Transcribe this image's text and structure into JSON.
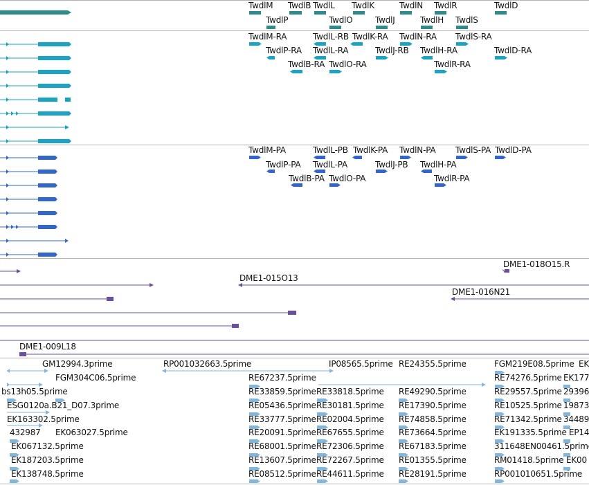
{
  "colors": {
    "transcript_old": "#2f8b8b",
    "transcript_ra": "#1aa3c3",
    "transcript_pa": "#3366cc",
    "bac": "#6a4ea0",
    "est": "#84b6dc",
    "divider": "#b4b4b4"
  },
  "tracks": {
    "genes": {
      "labels": [
        "TwdlM",
        "TwdlB",
        "TwdlL",
        "TwdlK",
        "TwdlN",
        "TwdlR",
        "TwdlD",
        "TwdlP",
        "TwdlO",
        "TwdlJ",
        "TwdlH",
        "TwdlS"
      ]
    },
    "ra_transcripts": {
      "labels": [
        "TwdlM-RA",
        "TwdlL-RB",
        "TwdlK-RA",
        "TwdlN-RA",
        "TwdlS-RA",
        "TwdlP-RA",
        "TwdlL-RA",
        "TwdlJ-RB",
        "TwdlH-RA",
        "TwdlD-RA",
        "TwdlB-RA",
        "TwdlO-RA",
        "TwdlR-RA"
      ]
    },
    "pa_transcripts": {
      "labels": [
        "TwdlM-PA",
        "TwdlL-PB",
        "TwdlK-PA",
        "TwdlN-PA",
        "TwdlS-PA",
        "TwdlD-PA",
        "TwdlP-PA",
        "TwdlL-PA",
        "TwdlJ-PB",
        "TwdlH-PA",
        "TwdlB-PA",
        "TwdlO-PA",
        "TwdlR-PA"
      ]
    },
    "bac_clones": {
      "labels": [
        "DME1-018O15.R",
        "DME1-015O13",
        "DME1-016N21",
        "DME1-009L18"
      ]
    },
    "est": {
      "labels": [
        "GM12994.3prime",
        "RP001032663.5prime",
        "IP08565.5prime",
        "RE24355.5prime",
        "FGM219E08.5prime",
        "EK",
        "FGM304C06.5prime",
        "RE67237.5prime",
        "RE74276.5prime",
        "EK177",
        "bs13h05.5prime",
        "RE33859.5prime",
        "RE33818.5prime",
        "RE49290.5prime",
        "RE29557.5prime",
        "29396",
        "ESG0120a.B21_D07.3prime",
        "RE05436.5prime",
        "RE30181.5prime",
        "RE17390.5prime",
        "RE10525.5prime",
        "19873",
        "EK163302.5prime",
        "RE33777.5prime",
        "RE02004.5prime",
        "RE74858.5prime",
        "RE71342.5prime",
        "34489",
        "432987",
        "EK063027.5prime",
        "RE20091.5prime",
        "RE67655.5prime",
        "RE73664.5prime",
        "EK191335.5prime",
        "EP14",
        "EK067132.5prime",
        "RE68001.5prime",
        "RE72306.5prime",
        "RE67183.5prime",
        "311648EN00461.5prime",
        "EK187203.5prime",
        "RE13607.5prime",
        "RE72267.5prime",
        "RE01355.5prime",
        "RM01418.5prime",
        "EK00",
        "EK138748.5prime",
        "RE08512.5prime",
        "RE44611.5prime",
        "RE28191.5prime",
        "RP001010651.5prime"
      ]
    }
  }
}
